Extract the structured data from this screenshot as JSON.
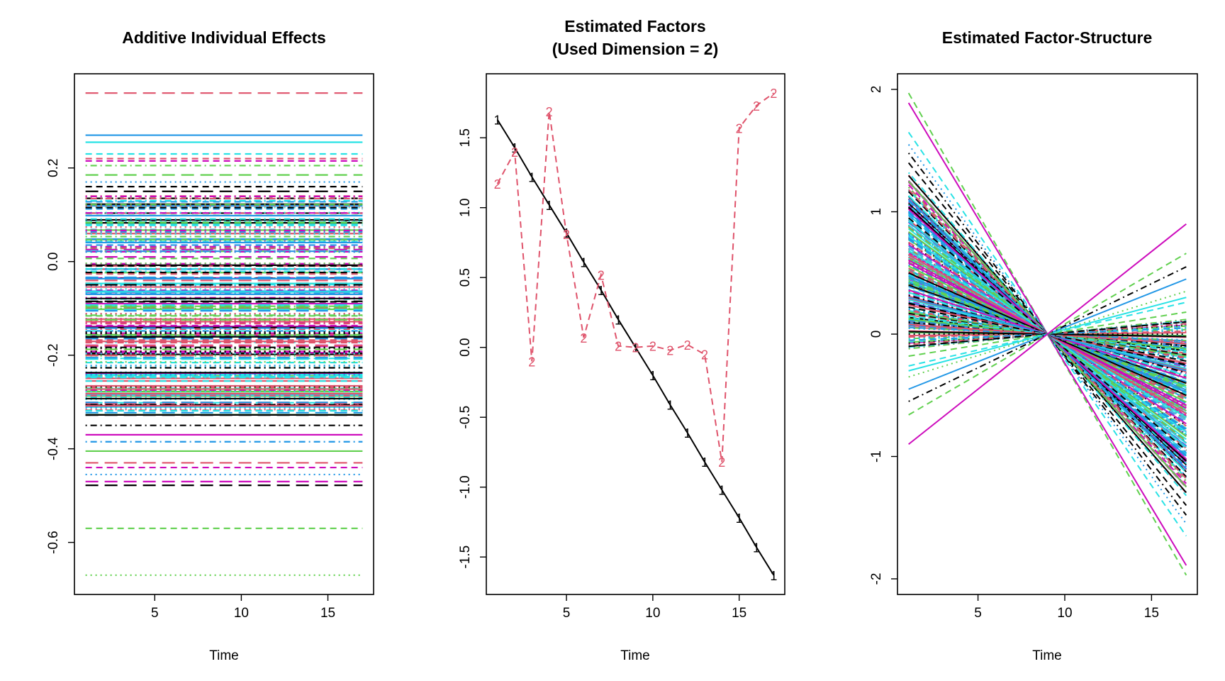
{
  "chart_data": [
    {
      "type": "line",
      "title": "Additive Individual Effects",
      "xlabel": "Time",
      "ylabel": "",
      "xlim": [
        1,
        17
      ],
      "ylim": [
        -0.67,
        0.36
      ],
      "xticks": [
        "5",
        "10",
        "15"
      ],
      "yticks": [
        "-0.6",
        "-0.4",
        "-0.2",
        "0.0",
        "0.2"
      ],
      "note_series": "many horizontal lines (one per individual); representative constant levels listed",
      "levels": [
        {
          "y": 0.36,
          "color": "#DF536B",
          "dash": "long"
        },
        {
          "y": 0.27,
          "color": "#2297E6",
          "dash": "solid"
        },
        {
          "y": 0.255,
          "color": "#28E2E5",
          "dash": "solid"
        },
        {
          "y": 0.23,
          "color": "#28E2E5",
          "dash": "dash"
        },
        {
          "y": 0.22,
          "color": "#DF536B",
          "dash": "dash"
        },
        {
          "y": 0.215,
          "color": "#CD0BBC",
          "dash": "dash"
        },
        {
          "y": 0.205,
          "color": "#61D04F",
          "dash": "dashdot"
        },
        {
          "y": 0.185,
          "color": "#61D04F",
          "dash": "long"
        },
        {
          "y": 0.17,
          "color": "#2297E6",
          "dash": "dot"
        },
        {
          "y": 0.16,
          "color": "#000000",
          "dash": "dash"
        },
        {
          "y": 0.15,
          "color": "#000000",
          "dash": "long"
        },
        {
          "y": -0.35,
          "color": "#000000",
          "dash": "dashdot"
        },
        {
          "y": -0.37,
          "color": "#CD0BBC",
          "dash": "solid"
        },
        {
          "y": -0.385,
          "color": "#2297E6",
          "dash": "dashdot"
        },
        {
          "y": -0.405,
          "color": "#61D04F",
          "dash": "solid"
        },
        {
          "y": -0.43,
          "color": "#DF536B",
          "dash": "long"
        },
        {
          "y": -0.44,
          "color": "#CD0BBC",
          "dash": "dash"
        },
        {
          "y": -0.455,
          "color": "#2297E6",
          "dash": "dot"
        },
        {
          "y": -0.47,
          "color": "#CD0BBC",
          "dash": "long"
        },
        {
          "y": -0.478,
          "color": "#000000",
          "dash": "long"
        },
        {
          "y": -0.57,
          "color": "#61D04F",
          "dash": "dash"
        },
        {
          "y": -0.67,
          "color": "#61D04F",
          "dash": "dot"
        }
      ]
    },
    {
      "type": "line",
      "title": "Estimated Factors",
      "subtitle": "(Used Dimension = 2)",
      "xlabel": "Time",
      "ylabel": "",
      "xlim": [
        1,
        17
      ],
      "ylim": [
        -1.63,
        1.82
      ],
      "xticks": [
        "5",
        "10",
        "15"
      ],
      "yticks": [
        "-1.5",
        "-1.0",
        "-0.5",
        "0.0",
        "0.5",
        "1.0",
        "1.5"
      ],
      "x": [
        1,
        2,
        3,
        4,
        5,
        6,
        7,
        8,
        9,
        10,
        11,
        12,
        13,
        14,
        15,
        16,
        17
      ],
      "series": [
        {
          "name": "1",
          "color": "#000000",
          "dash": "solid",
          "values": [
            1.63,
            1.43,
            1.22,
            1.02,
            0.82,
            0.61,
            0.41,
            0.2,
            0.0,
            -0.2,
            -0.41,
            -0.61,
            -0.82,
            -1.02,
            -1.22,
            -1.43,
            -1.63
          ]
        },
        {
          "name": "2",
          "color": "#DF536B",
          "dash": "dash",
          "values": [
            1.17,
            1.4,
            -0.1,
            1.69,
            0.81,
            0.07,
            0.52,
            0.01,
            0.0,
            0.01,
            -0.02,
            0.02,
            -0.05,
            -0.82,
            1.57,
            1.73,
            1.82
          ]
        }
      ]
    },
    {
      "type": "line",
      "title": "Estimated Factor-Structure",
      "xlabel": "Time",
      "ylabel": "",
      "xlim": [
        1,
        17
      ],
      "ylim": [
        -1.97,
        1.97
      ],
      "xticks": [
        "5",
        "10",
        "15"
      ],
      "yticks": [
        "-2",
        "-1",
        "0",
        "1",
        "2"
      ],
      "pivot_x": 9,
      "note_series": "many lines crossing zero at Time 9; start value at Time 1 listed (end value is its negative)",
      "starts": [
        {
          "y": 1.97,
          "color": "#61D04F",
          "dash": "dash"
        },
        {
          "y": 1.89,
          "color": "#CD0BBC",
          "dash": "solid"
        },
        {
          "y": 1.65,
          "color": "#28E2E5",
          "dash": "dash"
        },
        {
          "y": 1.55,
          "color": "#2297E6",
          "dash": "dot"
        },
        {
          "y": 1.48,
          "color": "#000000",
          "dash": "dashdot"
        },
        {
          "y": 1.4,
          "color": "#000000",
          "dash": "dash"
        },
        {
          "y": 1.32,
          "color": "#28E2E5",
          "dash": "dashdot"
        },
        {
          "y": 1.25,
          "color": "#61D04F",
          "dash": "solid"
        },
        {
          "y": 1.18,
          "color": "#DF536B",
          "dash": "dash"
        },
        {
          "y": 1.1,
          "color": "#2297E6",
          "dash": "solid"
        },
        {
          "y": 1.02,
          "color": "#CD0BBC",
          "dash": "solid"
        },
        {
          "y": 0.95,
          "color": "#000000",
          "dash": "dash"
        },
        {
          "y": 0.87,
          "color": "#61D04F",
          "dash": "dash"
        },
        {
          "y": 0.8,
          "color": "#28E2E5",
          "dash": "solid"
        },
        {
          "y": 0.72,
          "color": "#2297E6",
          "dash": "dash"
        },
        {
          "y": 0.65,
          "color": "#DF536B",
          "dash": "solid"
        },
        {
          "y": 0.58,
          "color": "#CD0BBC",
          "dash": "dash"
        },
        {
          "y": 0.5,
          "color": "#000000",
          "dash": "solid"
        },
        {
          "y": 0.43,
          "color": "#61D04F",
          "dash": "dashdot"
        },
        {
          "y": 0.36,
          "color": "#CD0BBC",
          "dash": "solid"
        },
        {
          "y": 0.3,
          "color": "#2297E6",
          "dash": "solid"
        },
        {
          "y": 0.22,
          "color": "#000000",
          "dash": "dash"
        },
        {
          "y": 0.15,
          "color": "#28E2E5",
          "dash": "dash"
        },
        {
          "y": 0.08,
          "color": "#DF536B",
          "dash": "solid"
        },
        {
          "y": 0.02,
          "color": "#000000",
          "dash": "solid"
        },
        {
          "y": -0.05,
          "color": "#2297E6",
          "dash": "dash"
        },
        {
          "y": -0.1,
          "color": "#000000",
          "dash": "dash"
        },
        {
          "y": -0.18,
          "color": "#61D04F",
          "dash": "dash"
        },
        {
          "y": -0.26,
          "color": "#28E2E5",
          "dash": "dash"
        },
        {
          "y": -0.3,
          "color": "#28E2E5",
          "dash": "solid"
        },
        {
          "y": -0.35,
          "color": "#61D04F",
          "dash": "dot"
        },
        {
          "y": -0.45,
          "color": "#2297E6",
          "dash": "solid"
        },
        {
          "y": -0.55,
          "color": "#000000",
          "dash": "dashdot"
        },
        {
          "y": -0.66,
          "color": "#61D04F",
          "dash": "dash"
        },
        {
          "y": -0.9,
          "color": "#CD0BBC",
          "dash": "solid"
        }
      ]
    }
  ],
  "palette": [
    "#000000",
    "#DF536B",
    "#61D04F",
    "#2297E6",
    "#28E2E5",
    "#CD0BBC"
  ]
}
